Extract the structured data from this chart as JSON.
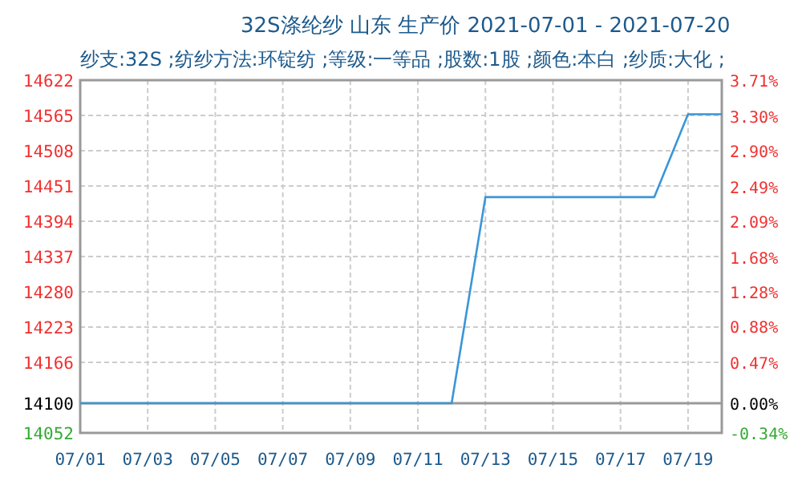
{
  "chart_data": {
    "type": "line",
    "title": "32S涤纶纱 山东 生产价 2021-07-01 - 2021-07-20",
    "subtitle": "纱支:32S ;纺纱方法:环锭纺 ;等级:一等品 ;股数:1股 ;颜色:本白 ;纱质:大化 ;",
    "x": [
      "2021-07-01",
      "2021-07-02",
      "2021-07-03",
      "2021-07-04",
      "2021-07-05",
      "2021-07-06",
      "2021-07-07",
      "2021-07-08",
      "2021-07-09",
      "2021-07-10",
      "2021-07-11",
      "2021-07-12",
      "2021-07-13",
      "2021-07-14",
      "2021-07-15",
      "2021-07-16",
      "2021-07-17",
      "2021-07-18",
      "2021-07-19",
      "2021-07-20"
    ],
    "series": [
      {
        "color": "#3a96d8",
        "values": [
          14100,
          14100,
          14100,
          14100,
          14100,
          14100,
          14100,
          14100,
          14100,
          14100,
          14100,
          14100,
          14433,
          14433,
          14433,
          14433,
          14433,
          14433,
          14567,
          14567
        ]
      }
    ],
    "xlim": [
      "2021-07-01",
      "2021-07-20"
    ],
    "xticks": [
      {
        "value": "2021-07-01",
        "label": "07/01"
      },
      {
        "value": "2021-07-03",
        "label": "07/03"
      },
      {
        "value": "2021-07-05",
        "label": "07/05"
      },
      {
        "value": "2021-07-07",
        "label": "07/07"
      },
      {
        "value": "2021-07-09",
        "label": "07/09"
      },
      {
        "value": "2021-07-11",
        "label": "07/11"
      },
      {
        "value": "2021-07-13",
        "label": "07/13"
      },
      {
        "value": "2021-07-15",
        "label": "07/15"
      },
      {
        "value": "2021-07-17",
        "label": "07/17"
      },
      {
        "value": "2021-07-19",
        "label": "07/19"
      }
    ],
    "ylim": [
      14052,
      14622
    ],
    "yticks": [
      14052,
      14100,
      14166,
      14223,
      14280,
      14337,
      14394,
      14451,
      14508,
      14565,
      14622
    ],
    "y2lim": [
      -0.34,
      3.71
    ],
    "y2ticks": [
      {
        "value": -0.34,
        "label": "-0.34%"
      },
      {
        "value": 0,
        "label": "0.00%"
      },
      {
        "value": 0.47,
        "label": "0.47%"
      },
      {
        "value": 0.88,
        "label": "0.88%"
      },
      {
        "value": 1.28,
        "label": "1.28%"
      },
      {
        "value": 1.68,
        "label": "1.68%"
      },
      {
        "value": 2.09,
        "label": "2.09%"
      },
      {
        "value": 2.49,
        "label": "2.49%"
      },
      {
        "value": 2.9,
        "label": "2.90%"
      },
      {
        "value": 3.3,
        "label": "3.30%"
      },
      {
        "value": 3.71,
        "label": "3.71%"
      }
    ],
    "ref_lines": [
      {
        "axis": "y",
        "value": 14100,
        "color": "#999999"
      }
    ],
    "grid": true,
    "line_style": "solid",
    "marker": "none"
  }
}
